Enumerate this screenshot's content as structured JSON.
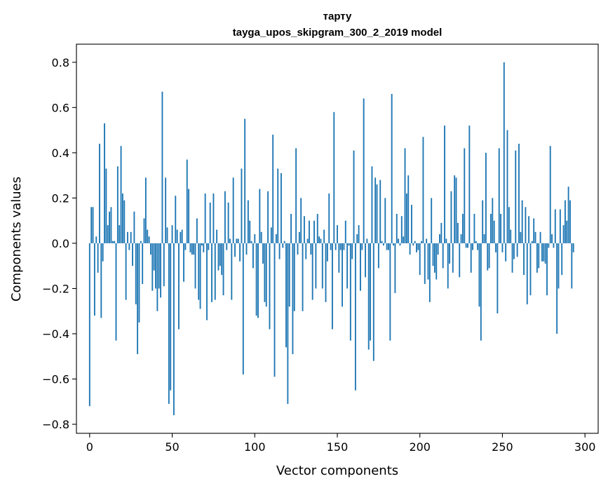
{
  "chart_data": {
    "type": "bar",
    "title": "тарту",
    "subtitle": "tayga_upos_skipgram_300_2_2019 model",
    "xlabel": "Vector components",
    "ylabel": "Components values",
    "xlim": [
      -8,
      308
    ],
    "ylim": [
      -0.84,
      0.88
    ],
    "xticks": [
      0,
      50,
      100,
      150,
      200,
      250,
      300
    ],
    "xtick_labels": [
      "0",
      "50",
      "100",
      "150",
      "200",
      "250",
      "300"
    ],
    "yticks": [
      -0.8,
      -0.6,
      -0.4,
      -0.2,
      0.0,
      0.2,
      0.4,
      0.6,
      0.8
    ],
    "ytick_labels": [
      "−0.8",
      "−0.6",
      "−0.4",
      "−0.2",
      "0.0",
      "0.2",
      "0.4",
      "0.6",
      "0.8"
    ],
    "bar_color": "#1f77b4",
    "grid": false,
    "values": [
      -0.72,
      0.16,
      0.16,
      -0.32,
      0.03,
      -0.13,
      0.44,
      -0.33,
      -0.08,
      0.53,
      0.33,
      0.08,
      0.14,
      0.16,
      0.01,
      0.01,
      -0.43,
      0.34,
      0.08,
      0.43,
      0.22,
      0.19,
      -0.25,
      0.05,
      -0.03,
      0.05,
      -0.1,
      0.14,
      -0.27,
      -0.49,
      -0.35,
      0.01,
      -0.18,
      0.11,
      0.29,
      0.06,
      0.03,
      -0.05,
      -0.21,
      -0.12,
      -0.2,
      -0.3,
      -0.2,
      -0.24,
      0.67,
      -0.19,
      0.29,
      0.07,
      -0.71,
      -0.65,
      0.08,
      -0.76,
      0.21,
      0.06,
      -0.38,
      0.05,
      0.06,
      -0.17,
      -0.03,
      0.37,
      0.24,
      -0.04,
      -0.05,
      -0.05,
      -0.2,
      0.11,
      -0.25,
      -0.29,
      -0.01,
      -0.04,
      0.22,
      -0.34,
      -0.03,
      0.18,
      -0.26,
      0.22,
      -0.25,
      0.06,
      -0.12,
      -0.1,
      -0.14,
      -0.23,
      0.23,
      -0.03,
      0.18,
      0.02,
      -0.25,
      0.29,
      -0.06,
      0.02,
      0.02,
      -0.08,
      0.33,
      -0.58,
      0.55,
      -0.05,
      0.19,
      0.1,
      0.01,
      -0.11,
      0.04,
      -0.32,
      -0.33,
      0.24,
      0.05,
      -0.09,
      -0.26,
      -0.28,
      0.23,
      -0.38,
      0.07,
      0.48,
      -0.59,
      0.04,
      0.33,
      -0.07,
      0.31,
      -0.02,
      0.01,
      -0.46,
      -0.71,
      -0.28,
      0.13,
      -0.49,
      -0.3,
      0.42,
      -0.05,
      0.05,
      0.2,
      -0.3,
      0.12,
      -0.07,
      0.02,
      0.1,
      -0.05,
      -0.25,
      0.1,
      -0.2,
      0.13,
      0.03,
      0.02,
      -0.2,
      0.06,
      -0.26,
      -0.08,
      0.22,
      -0.03,
      -0.38,
      0.58,
      -0.03,
      0.08,
      -0.13,
      -0.03,
      -0.28,
      -0.03,
      0.1,
      -0.2,
      -0.01,
      -0.43,
      -0.07,
      0.41,
      -0.65,
      0.04,
      0.08,
      -0.21,
      -0.03,
      0.64,
      -0.15,
      0.02,
      -0.47,
      -0.43,
      0.34,
      -0.52,
      0.29,
      0.26,
      -0.11,
      0.28,
      0.01,
      -0.01,
      0.2,
      -0.03,
      -0.03,
      -0.43,
      0.66,
      -0.01,
      -0.22,
      0.13,
      0.02,
      -0.01,
      0.12,
      0.03,
      0.42,
      0.22,
      0.3,
      -0.05,
      0.17,
      -0.01,
      0.01,
      -0.04,
      -0.03,
      -0.14,
      0.01,
      0.47,
      -0.18,
      0.02,
      -0.16,
      -0.26,
      0.2,
      -0.1,
      -0.13,
      -0.16,
      -0.05,
      0.04,
      0.09,
      -0.11,
      0.52,
      0.02,
      -0.2,
      -0.09,
      0.23,
      -0.13,
      0.3,
      0.29,
      0.09,
      -0.15,
      0.04,
      0.13,
      0.42,
      -0.02,
      -0.02,
      0.52,
      -0.13,
      -0.03,
      0.13,
      0.01,
      -0.03,
      -0.28,
      -0.43,
      0.19,
      0.04,
      0.4,
      -0.12,
      -0.11,
      0.13,
      0.2,
      0.1,
      -0.04,
      -0.31,
      0.42,
      0.13,
      -0.04,
      0.8,
      -0.08,
      0.5,
      0.16,
      0.06,
      -0.13,
      -0.07,
      0.41,
      -0.06,
      0.44,
      0.05,
      0.19,
      -0.14,
      0.16,
      -0.27,
      0.12,
      -0.23,
      0.01,
      0.11,
      0.05,
      -0.13,
      -0.11,
      0.05,
      -0.08,
      -0.08,
      -0.09,
      -0.23,
      -0.02,
      0.43,
      0.04,
      -0.02,
      0.15,
      -0.4,
      -0.2,
      0.15,
      -0.14,
      0.08,
      0.19,
      0.1,
      0.25,
      0.19,
      -0.2,
      -0.04
    ]
  }
}
